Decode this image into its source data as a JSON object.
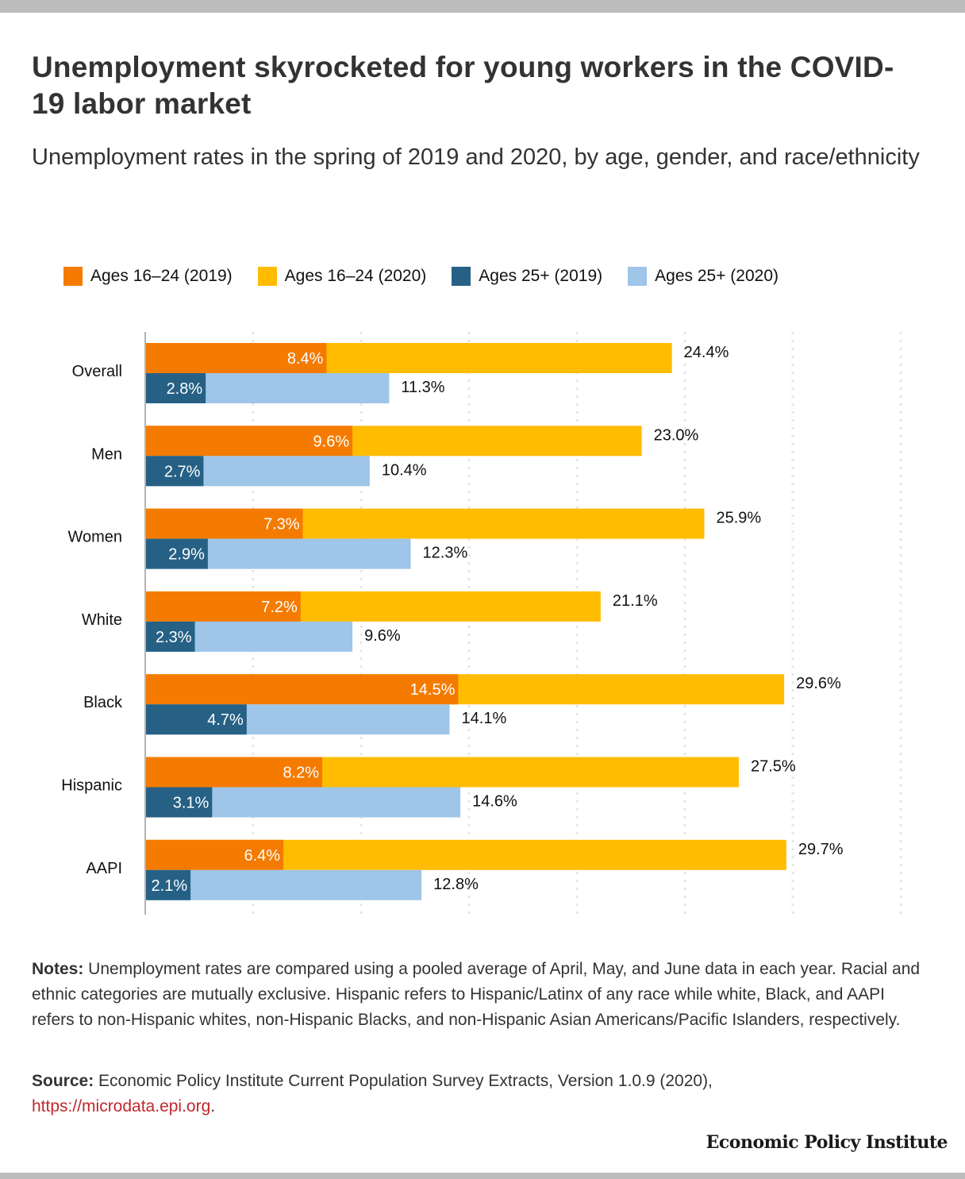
{
  "page": {
    "title": "Unemployment skyrocketed for young workers in the COVID-19 labor market",
    "subtitle": "Unemployment rates in the spring of 2019 and 2020, by age, gender, and race/ethnicity",
    "notes_label": "Notes:",
    "notes_text": " Unemployment rates are compared using a pooled average of April, May, and June data in each year. Racial and ethnic categories are mutually exclusive. Hispanic refers to Hispanic/Latinx of any race while white, Black, and AAPI refers to non-Hispanic whites, non-Hispanic Blacks, and non-Hispanic Asian Americans/Pacific Islanders, respectively.",
    "source_label": "Source:",
    "source_text": " Economic Policy Institute Current Population Survey Extracts, Version 1.0.9 (2020),",
    "source_link": "https://microdata.epi.org",
    "source_link_suffix": ".",
    "brand": "Economic Policy Institute"
  },
  "colors": {
    "youth_2019": "#f47b00",
    "youth_2020": "#ffbc00",
    "adult_2019": "#266185",
    "adult_2020": "#9fc5e8",
    "gridline": "#e6e6e6",
    "axis": "#b3b3b3",
    "link": "#c1272d"
  },
  "chart_data": {
    "type": "bar",
    "orientation": "horizontal",
    "layout": "overlaid (2019 bar drawn over 2020 bar, same start)",
    "title": "Unemployment skyrocketed for young workers in the COVID-19 labor market",
    "subtitle": "Unemployment rates in the spring of 2019 and 2020, by age, gender, and race/ethnicity",
    "xlabel": "",
    "ylabel": "",
    "xlim": [
      0,
      35
    ],
    "grid": true,
    "grid_step": 5,
    "legend_position": "top",
    "value_format": "{v}%",
    "categories": [
      "Overall",
      "Men",
      "Women",
      "White",
      "Black",
      "Hispanic",
      "AAPI"
    ],
    "series": [
      {
        "name": "Ages 16–24 (2019)",
        "key": "youth_2019",
        "values": [
          8.4,
          9.6,
          7.3,
          7.2,
          14.5,
          8.2,
          6.4
        ]
      },
      {
        "name": "Ages 16–24 (2020)",
        "key": "youth_2020",
        "values": [
          24.4,
          23.0,
          25.9,
          21.1,
          29.6,
          27.5,
          29.7
        ]
      },
      {
        "name": "Ages 25+ (2019)",
        "key": "adult_2019",
        "values": [
          2.8,
          2.7,
          2.9,
          2.3,
          4.7,
          3.1,
          2.1
        ]
      },
      {
        "name": "Ages 25+ (2020)",
        "key": "adult_2020",
        "values": [
          11.3,
          10.4,
          12.3,
          9.6,
          14.1,
          14.6,
          12.8
        ]
      }
    ],
    "labels": {
      "youth_2019": [
        "8.4%",
        "9.6%",
        "7.3%",
        "7.2%",
        "14.5%",
        "8.2%",
        "6.4%"
      ],
      "youth_2020": [
        "24.4%",
        "23.0%",
        "25.9%",
        "21.1%",
        "29.6%",
        "27.5%",
        "29.7%"
      ],
      "adult_2019": [
        "2.8%",
        "2.7%",
        "2.9%",
        "2.3%",
        "4.7%",
        "3.1%",
        "2.1%"
      ],
      "adult_2020": [
        "11.3%",
        "10.4%",
        "12.3%",
        "9.6%",
        "14.1%",
        "14.6%",
        "12.8%"
      ]
    }
  }
}
